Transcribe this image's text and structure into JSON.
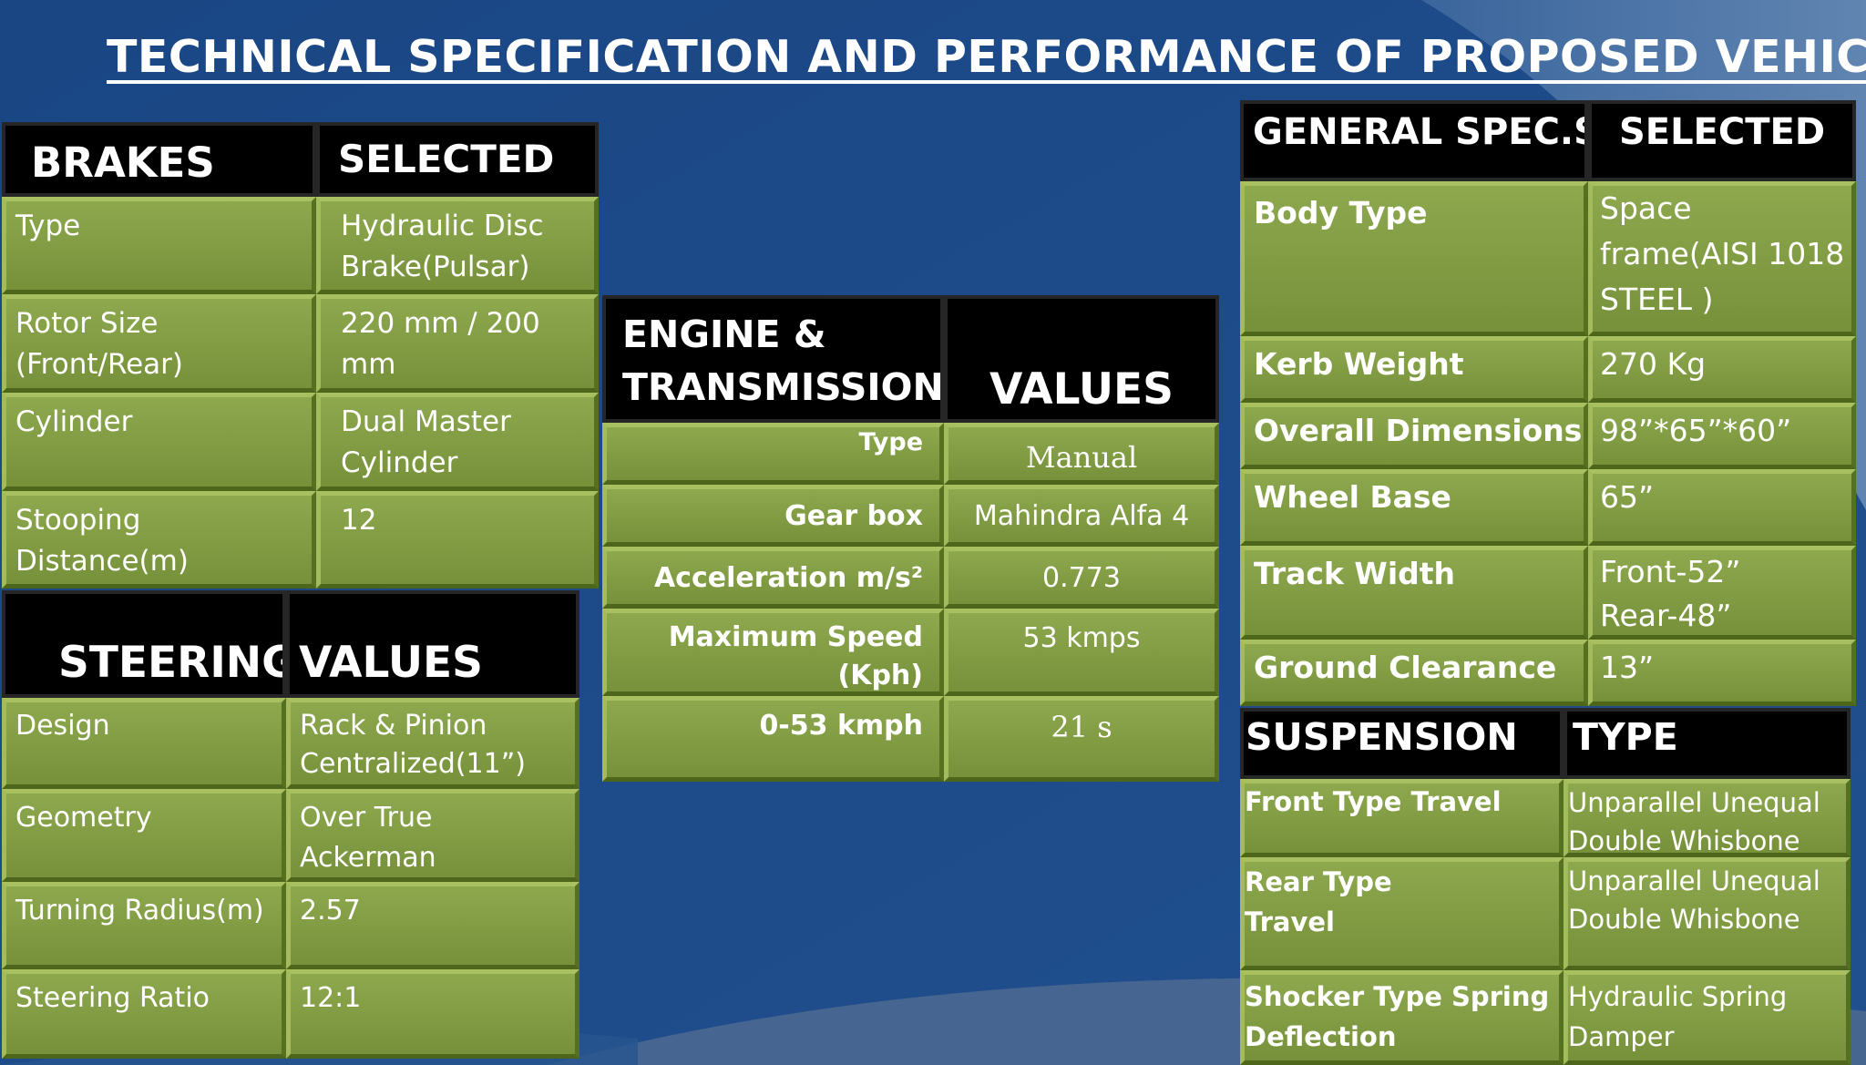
{
  "title": "TECHNICAL  SPECIFICATION AND PERFORMANCE OF PROPOSED VEHICLE",
  "colors": {
    "background": "#1d4a86",
    "cell_green": "#82a044",
    "header_black": "#000000"
  },
  "brakes": {
    "header": [
      "BRAKES",
      "SELECTED"
    ],
    "rows": [
      [
        "Type",
        "Hydraulic Disc Brake(Pulsar)"
      ],
      [
        "Rotor Size (Front/Rear)",
        "220 mm / 200 mm"
      ],
      [
        "Cylinder",
        "Dual Master Cylinder"
      ],
      [
        "Stooping Distance(m)",
        "12"
      ]
    ]
  },
  "steering": {
    "header": [
      "STEERING",
      "VALUES"
    ],
    "rows": [
      [
        "Design",
        "Rack & Pinion Centralized(11”)"
      ],
      [
        "Geometry",
        "Over True Ackerman"
      ],
      [
        "Turning Radius(m)",
        "2.57"
      ],
      [
        "Steering  Ratio",
        "12:1"
      ]
    ]
  },
  "engine": {
    "header": [
      "ENGINE & TRANSMISSION",
      "VALUES"
    ],
    "rows": [
      [
        "Type",
        "Manual"
      ],
      [
        "Gear box",
        "Mahindra Alfa 4"
      ],
      [
        "Acceleration m/s²",
        "0.773"
      ],
      [
        "Maximum Speed (Kph)",
        "53 kmps"
      ],
      [
        "0-53 kmph",
        "21 s"
      ]
    ]
  },
  "general": {
    "header": [
      "GENERAL  SPEC.S",
      "SELECTED"
    ],
    "rows": [
      [
        "Body Type",
        "Space frame(AISI 1018 STEEL )"
      ],
      [
        "Kerb Weight",
        "270 Kg"
      ],
      [
        "Overall Dimensions",
        "98”*65”*60”"
      ],
      [
        "Wheel Base",
        "65”"
      ],
      [
        "Track Width",
        "Front-52” Rear-48”"
      ],
      [
        "Ground Clearance",
        "13”"
      ]
    ]
  },
  "suspension": {
    "header": [
      "SUSPENSION",
      "TYPE"
    ],
    "rows": [
      [
        "Front Type Travel",
        "Unparallel  Unequal Double Whisbone"
      ],
      [
        "Rear Type Travel",
        "Unparallel  Unequal Double Whisbone"
      ],
      [
        "Shocker Type Spring Deflection",
        " Hydraulic Spring Damper"
      ]
    ]
  }
}
